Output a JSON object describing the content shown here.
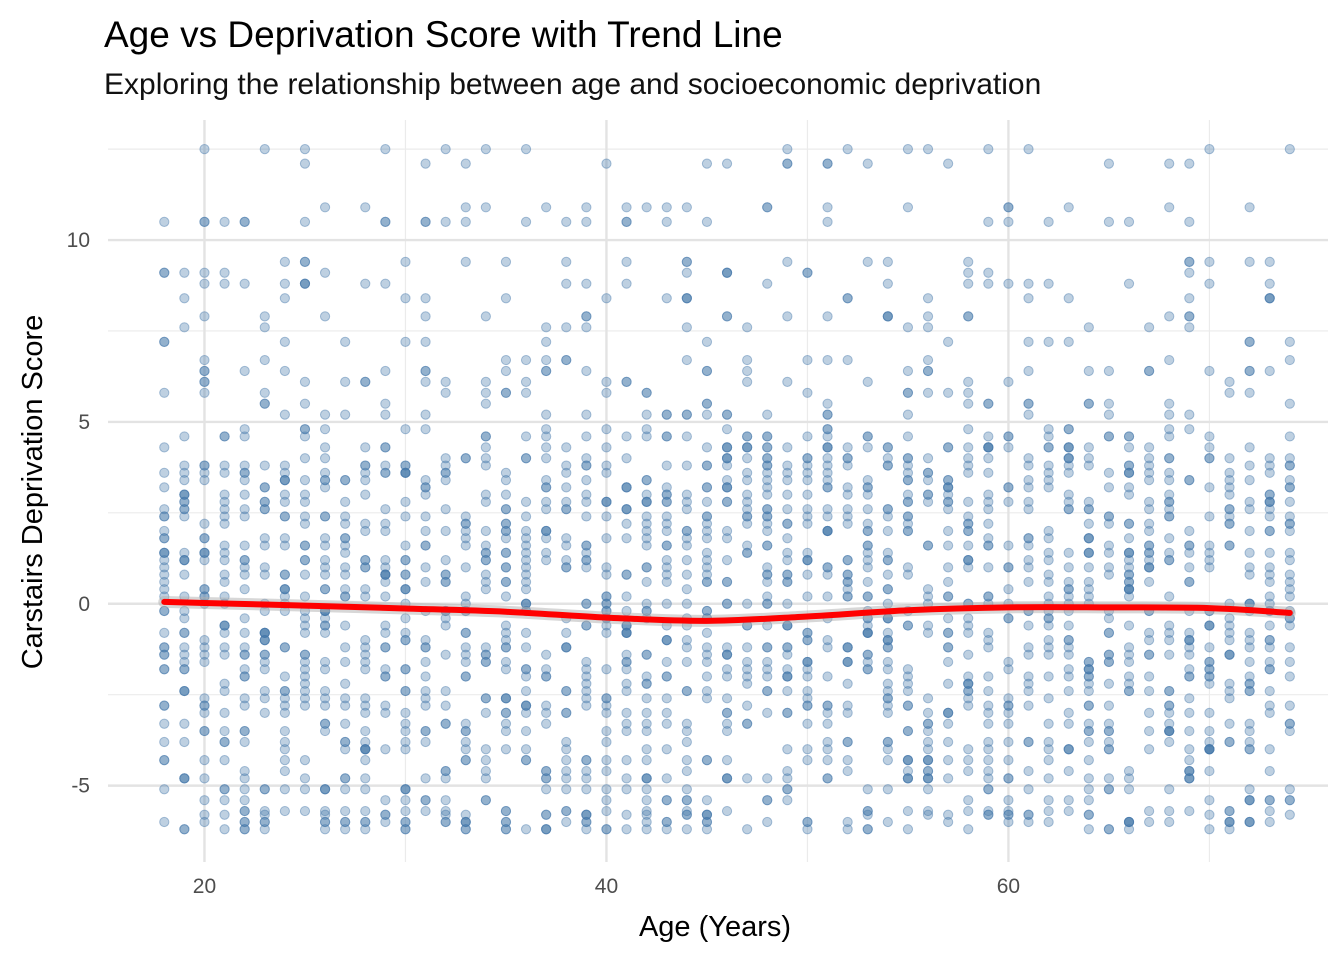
{
  "chart_data": {
    "type": "scatter",
    "title": "Age vs Deprivation Score with Trend Line",
    "subtitle": "Exploring the relationship between age and socioeconomic deprivation",
    "xlabel": "Age (Years)",
    "ylabel": "Carstairs Deprivation Score",
    "xlim": [
      15.2,
      75.9
    ],
    "ylim": [
      -7.1,
      13.3
    ],
    "x_ticks": [
      20,
      40,
      60
    ],
    "x_tick_labels": [
      "20",
      "40",
      "60"
    ],
    "y_ticks": [
      -5,
      0,
      5,
      10
    ],
    "y_tick_labels": [
      "-5",
      "0",
      "5",
      "10"
    ],
    "grid": true,
    "legend": "none",
    "point_color": "#4477AA",
    "point_opacity": 0.35,
    "trend_color": "#FF0000",
    "x_range": [
      18,
      74
    ],
    "score_values": [
      -6.2,
      -6.0,
      -5.8,
      -5.7,
      -5.4,
      -5.1,
      -4.8,
      -4.6,
      -4.3,
      -4.0,
      -3.8,
      -3.5,
      -3.3,
      -3.0,
      -2.8,
      -2.6,
      -2.4,
      -2.2,
      -2.0,
      -1.8,
      -1.6,
      -1.4,
      -1.2,
      -1.0,
      -0.8,
      -0.6,
      -0.4,
      -0.2,
      0.0,
      0.2,
      0.4,
      0.6,
      0.8,
      1.0,
      1.2,
      1.4,
      1.6,
      1.8,
      2.0,
      2.2,
      2.4,
      2.6,
      2.8,
      3.0,
      3.2,
      3.4,
      3.6,
      3.8,
      4.0,
      4.3,
      4.6,
      4.8,
      5.2,
      5.5,
      5.8,
      6.1,
      6.4,
      6.7,
      7.2,
      7.6,
      7.9,
      8.4,
      8.8,
      9.1,
      9.4,
      10.5,
      10.9,
      12.1,
      12.5
    ],
    "trend_line": {
      "x": [
        18,
        20,
        25,
        30,
        35,
        40,
        45,
        50,
        55,
        60,
        65,
        70,
        74
      ],
      "y": [
        0.05,
        0.02,
        -0.05,
        -0.13,
        -0.22,
        -0.38,
        -0.47,
        -0.35,
        -0.18,
        -0.1,
        -0.1,
        -0.12,
        -0.25
      ]
    }
  }
}
